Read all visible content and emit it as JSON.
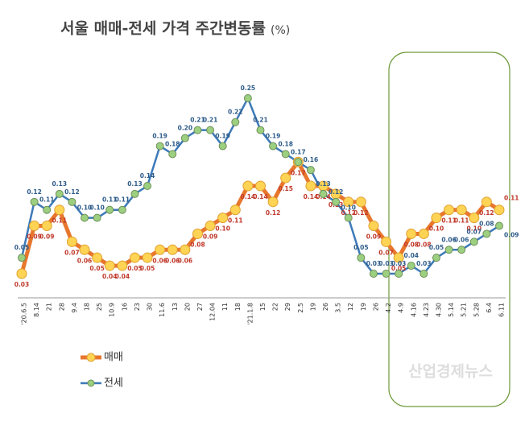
{
  "chart_data": {
    "type": "line",
    "title": "서울 매매-전세 가격 주간변동률",
    "title_unit": "(%)",
    "watermark": "산업경제뉴스",
    "categories": [
      "'20.6.5",
      "8.14",
      "21",
      "28",
      "9.4",
      "18",
      "25",
      "10.9",
      "16",
      "23",
      "30",
      "11.6",
      "13",
      "20",
      "27",
      "12.04",
      "11",
      "18",
      "'21.1.8",
      "15",
      "22",
      "29",
      "2.5",
      "19",
      "26",
      "3.5",
      "12",
      "19",
      "26",
      "4.2",
      "4.9",
      "4.16",
      "4.23",
      "4.30",
      "5.14",
      "5.21",
      "5.28",
      "6.4",
      "6.11"
    ],
    "series": [
      {
        "name": "매매",
        "color": "#e8772e",
        "marker_color": "#ffd454",
        "label_color": "#c0392b",
        "values": [
          0.03,
          0.09,
          0.09,
          0.11,
          0.07,
          0.06,
          0.05,
          0.04,
          0.04,
          0.05,
          0.05,
          0.06,
          0.06,
          0.06,
          0.08,
          0.09,
          0.1,
          0.11,
          0.14,
          0.14,
          0.12,
          0.15,
          0.17,
          0.14,
          0.14,
          0.13,
          0.12,
          0.12,
          0.09,
          0.07,
          0.05,
          0.08,
          0.08,
          0.1,
          0.11,
          0.11,
          0.1,
          0.12,
          0.11
        ],
        "value_labels": [
          "0.03",
          "0.09",
          "0.09",
          "0.11",
          "0.07",
          "0.06",
          "0.05",
          "0.04",
          "0.04",
          "0.05",
          "0.05",
          "0.06",
          "0.06",
          "0.06",
          "0.08",
          "0.09",
          "0.10",
          "0.11",
          "0.14",
          "0.14",
          "0.12",
          "0.15",
          "0.17",
          "0.14",
          "0.14",
          "0.13",
          "0.12",
          "0.12",
          "0.09",
          "0.07",
          "0.05",
          "0.08",
          "0.08",
          "0.10",
          "0.11",
          "0.11",
          "0.10",
          "0.12",
          "0.11"
        ]
      },
      {
        "name": "전세",
        "color": "#3d7ab8",
        "marker_color": "#9ccf7f",
        "label_color": "#2e5c8a",
        "values": [
          0.05,
          0.12,
          0.11,
          0.13,
          0.12,
          0.1,
          0.1,
          0.11,
          0.11,
          0.13,
          0.14,
          0.19,
          0.18,
          0.2,
          0.21,
          0.21,
          0.19,
          0.22,
          0.25,
          0.21,
          0.19,
          0.18,
          0.17,
          0.16,
          0.13,
          0.12,
          0.1,
          0.05,
          0.03,
          0.03,
          0.03,
          0.04,
          0.03,
          0.05,
          0.06,
          0.06,
          0.07,
          0.08,
          0.09
        ],
        "value_labels": [
          "0.05",
          "0.12",
          "0.11",
          "0.13",
          "0.12",
          "0.10",
          "0.10",
          "0.11",
          "0.11",
          "0.13",
          "0.14",
          "0.19",
          "0.18",
          "0.20",
          "0.21",
          "0.21",
          "0.19",
          "0.22",
          "0.25",
          "0.21",
          "0.19",
          "0.18",
          "0.17",
          "0.16",
          "0.13",
          "0.12",
          "0.10",
          "0.05",
          "0.03",
          "0.03",
          "0.03",
          "0.04",
          "0.03",
          "0.05",
          "0.06",
          "0.06",
          "0.07",
          "0.08",
          "0.09"
        ]
      }
    ]
  }
}
